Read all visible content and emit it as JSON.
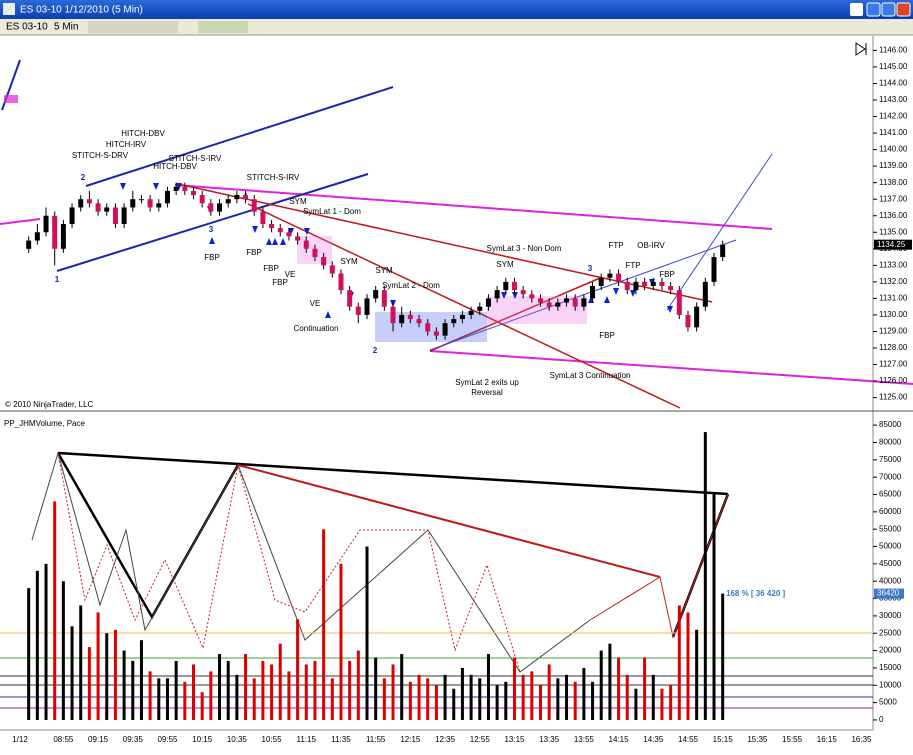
{
  "window": {
    "title": "ES 03-10  1/12/2010 (5 Min)",
    "instrument": "ES 03-10",
    "interval": "5 Min",
    "copyright": "© 2010 NinjaTrader, LLC"
  },
  "chart_data": [
    {
      "type": "ohlc",
      "open": [
        null,
        1134,
        1134.5,
        1135,
        1136,
        1134,
        1135.5,
        1136.5,
        1137,
        1136.75,
        1136.25,
        1136.5,
        1135.5,
        1136.5,
        1137,
        1137,
        1136.5,
        1136.75,
        1137.5,
        1137.75,
        1137.5,
        1137.25,
        1136.75,
        1136.25,
        1136.75,
        1137,
        1137.25,
        1137,
        1136.25,
        1135.5,
        1135.25,
        1135,
        1134.75,
        1134.5,
        1134,
        1133.5,
        1133,
        1132.5,
        1131.5,
        1130.5,
        1130,
        1131,
        1131.5,
        1130.5,
        1129.5,
        1130,
        1129.75,
        1129.5,
        1129,
        1128.75,
        1129.5,
        1129.75,
        1130,
        1130.25,
        1130.5,
        1131,
        1131.5,
        1132,
        1131.5,
        1131.25,
        1131,
        1130.75,
        1130.5,
        1130.75,
        1131,
        1130.5,
        1131,
        1131.75,
        1132.25,
        1132.5,
        1132,
        1131.5,
        1132,
        1131.75,
        1132,
        1131.75,
        1131.5,
        1130,
        1129.25,
        1130.5,
        1132,
        1133.5,
        null,
        null,
        null,
        null,
        null,
        null,
        null,
        null,
        null,
        null,
        null,
        null,
        null,
        null,
        null,
        null,
        null
      ],
      "high": [
        null,
        1134.75,
        1135.5,
        1136.5,
        1136.25,
        1135.75,
        1136.75,
        1137.25,
        1137.5,
        1137,
        1136.75,
        1136.75,
        1136.75,
        1137.5,
        1137.25,
        1137.25,
        1137,
        1137.75,
        1138,
        1138,
        1137.75,
        1137.5,
        1137,
        1137,
        1137.25,
        1137.5,
        1137.5,
        1137.25,
        1136.5,
        1135.75,
        1135.5,
        1135.25,
        1135,
        1134.75,
        1134.25,
        1133.75,
        1133.25,
        1132.75,
        1131.75,
        1130.75,
        1131.25,
        1131.75,
        1131.75,
        1130.75,
        1130.5,
        1130.25,
        1130,
        1129.75,
        1129.25,
        1129.75,
        1130,
        1130.25,
        1130.5,
        1130.75,
        1131.25,
        1131.75,
        1132.25,
        1132.25,
        1131.75,
        1131.5,
        1131.25,
        1131,
        1131,
        1131.25,
        1131.25,
        1131.25,
        1132,
        1132.5,
        1132.75,
        1132.75,
        1132.25,
        1132.25,
        1132.25,
        1132.25,
        1132.25,
        1132,
        1131.75,
        1130.25,
        1130.75,
        1132.25,
        1133.75,
        1134.5,
        null,
        null,
        null,
        null,
        null,
        null,
        null,
        null,
        null,
        null,
        null,
        null,
        null,
        null,
        null,
        null,
        null
      ],
      "low": [
        null,
        1133.75,
        1134.25,
        1134.75,
        1133,
        1133.75,
        1135.25,
        1136.25,
        1136.5,
        1136,
        1136,
        1135.25,
        1135.25,
        1136.25,
        1136.75,
        1136.25,
        1136.25,
        1136.5,
        1137.25,
        1137.25,
        1137,
        1136.5,
        1136,
        1136,
        1136.5,
        1136.75,
        1136.75,
        1136,
        1135.25,
        1135,
        1134.75,
        1134.5,
        1134.25,
        1133.75,
        1133.25,
        1132.75,
        1132.25,
        1131.25,
        1130.25,
        1129.5,
        1129.75,
        1130.75,
        1130.25,
        1129,
        1129.25,
        1129.5,
        1129.25,
        1128.75,
        1128.5,
        1128.5,
        1129.25,
        1129.5,
        1129.75,
        1130,
        1130.25,
        1130.75,
        1131.25,
        1131.25,
        1131,
        1130.75,
        1130.5,
        1130.25,
        1130.25,
        1130.5,
        1130.25,
        1130.25,
        1130.75,
        1131.5,
        1132,
        1131.75,
        1131.25,
        1131.25,
        1131.5,
        1131.5,
        1131.5,
        1131.25,
        1129.75,
        1129,
        1129,
        1130.25,
        1131.75,
        1133.25,
        null,
        null,
        null,
        null,
        null,
        null,
        null,
        null,
        null,
        null,
        null,
        null,
        null,
        null,
        null,
        null,
        null
      ],
      "close": [
        null,
        1134.5,
        1135,
        1136,
        1134,
        1135.5,
        1136.5,
        1137,
        1136.75,
        1136.25,
        1136.5,
        1135.5,
        1136.5,
        1137,
        1137,
        1136.5,
        1136.75,
        1137.5,
        1137.75,
        1137.5,
        1137.25,
        1136.75,
        1136.25,
        1136.75,
        1137,
        1137.25,
        1137,
        1136.25,
        1135.5,
        1135.25,
        1135,
        1134.75,
        1134.5,
        1134,
        1133.5,
        1133,
        1132.5,
        1131.5,
        1130.5,
        1130,
        1131,
        1131.5,
        1130.5,
        1129.5,
        1130,
        1129.75,
        1129.5,
        1129,
        1128.75,
        1129.5,
        1129.75,
        1130,
        1130.25,
        1130.5,
        1131,
        1131.5,
        1132,
        1131.5,
        1131.25,
        1131,
        1130.75,
        1130.5,
        1130.75,
        1131,
        1130.5,
        1131,
        1131.75,
        1132.25,
        1132.5,
        1132,
        1131.5,
        1132,
        1131.75,
        1132,
        1131.75,
        1131.5,
        1130,
        1129.25,
        1130.5,
        1132,
        1133.5,
        1134.25,
        null,
        null,
        null,
        null,
        null,
        null,
        null,
        null,
        null,
        null,
        null,
        null,
        null,
        null,
        null,
        null,
        null
      ],
      "up_color": "#000000",
      "down_color": "#d0105a",
      "ylim": [
        1124.25,
        1146.75
      ],
      "yticks": [
        {
          "value": 1125,
          "label": "1125.00"
        },
        {
          "value": 1126,
          "label": "1126.00"
        },
        {
          "value": 1127,
          "label": "1127.00"
        },
        {
          "value": 1128,
          "label": "1128.00"
        },
        {
          "value": 1129,
          "label": "1129.00"
        },
        {
          "value": 1130,
          "label": "1130.00"
        },
        {
          "value": 1131,
          "label": "1131.00"
        },
        {
          "value": 1132,
          "label": "1132.00"
        },
        {
          "value": 1133,
          "label": "1133.00"
        },
        {
          "value": 1134,
          "label": "1134.00"
        },
        {
          "value": 1135,
          "label": "1135.00"
        },
        {
          "value": 1136,
          "label": "1136.00"
        },
        {
          "value": 1137,
          "label": "1137.00"
        },
        {
          "value": 1138,
          "label": "1138.00"
        },
        {
          "value": 1139,
          "label": "1139.00"
        },
        {
          "value": 1140,
          "label": "1140.00"
        },
        {
          "value": 1141,
          "label": "1141.00"
        },
        {
          "value": 1142,
          "label": "1142.00"
        },
        {
          "value": 1143,
          "label": "1143.00"
        },
        {
          "value": 1144,
          "label": "1144.00"
        },
        {
          "value": 1145,
          "label": "1145.00"
        },
        {
          "value": 1146,
          "label": "1146.00"
        }
      ],
      "last_price": 1134.25,
      "annotations": [
        "STITCH-S-DRV",
        "HITCH-IRV",
        "HITCH-DBV",
        "STITCH-S-IRV",
        "HITCH-DBV",
        "STITCH-S-IRV",
        "SYM",
        "SymLat 1 - Dom",
        "FBP",
        "FBP",
        "FBP",
        "FBP",
        "VE",
        "VE",
        "Continuation",
        "SYM",
        "SYM",
        "SymLat 2 - Dom",
        "SymLat 3 - Non Dom",
        "SYM",
        "FTP",
        "FTP",
        "OB-IRV",
        "FBP",
        "FBP",
        "SymLat 2 exits up",
        "Reversal",
        "SymLat 3 Continuation",
        "1",
        "2",
        "3",
        "1",
        "2",
        "3"
      ]
    },
    {
      "type": "bar",
      "title": "PP_JHMVolume, Pace",
      "categories": [
        "1/12",
        null,
        null,
        null,
        null,
        "08:55",
        null,
        null,
        null,
        "09:15",
        null,
        null,
        null,
        "09:35",
        null,
        null,
        null,
        "09:55",
        null,
        null,
        null,
        "10:15",
        null,
        null,
        null,
        "10:35",
        null,
        null,
        null,
        "10:55",
        null,
        null,
        null,
        "11:15",
        null,
        null,
        null,
        "11:35",
        null,
        null,
        null,
        "11:55",
        null,
        null,
        null,
        "12:15",
        null,
        null,
        null,
        "12:35",
        null,
        null,
        null,
        "12:55",
        null,
        null,
        null,
        "13:15",
        null,
        null,
        null,
        "13:35",
        null,
        null,
        null,
        "13:55",
        null,
        null,
        null,
        "14:15",
        null,
        null,
        null,
        "14:35",
        null,
        null,
        null,
        "14:55",
        null,
        null,
        null,
        "15:15",
        null,
        null,
        null,
        "15:35",
        null,
        null,
        null,
        "15:55",
        null,
        null,
        null,
        "16:15",
        null,
        null,
        null,
        "16:35",
        null
      ],
      "values": [
        null,
        38000,
        43000,
        45000,
        63000,
        40000,
        27000,
        33000,
        21000,
        31000,
        25000,
        26000,
        20000,
        17000,
        23000,
        14000,
        12000,
        12000,
        17000,
        11000,
        16000,
        8000,
        14000,
        19000,
        17000,
        13000,
        19000,
        12000,
        17000,
        16000,
        22000,
        14000,
        29000,
        16000,
        17000,
        55000,
        12000,
        45000,
        17000,
        20000,
        50000,
        18000,
        12000,
        16000,
        19000,
        11000,
        13000,
        12000,
        10000,
        13000,
        9000,
        15000,
        13000,
        12000,
        19000,
        10000,
        11000,
        18000,
        13000,
        14000,
        10000,
        16000,
        12000,
        13000,
        11000,
        15000,
        11000,
        20000,
        22000,
        18000,
        13000,
        9000,
        18000,
        13000,
        9000,
        10000,
        33000,
        31000,
        26000,
        83000,
        65000,
        36420,
        null,
        null,
        null,
        null,
        null,
        null,
        null,
        null,
        null,
        null,
        null,
        null,
        null,
        null,
        null,
        null,
        null
      ],
      "up_color": "#000000",
      "down_color": "#dd0000",
      "ylim": [
        -2900,
        88500
      ],
      "yticks": [
        0,
        5000,
        10000,
        15000,
        20000,
        25000,
        30000,
        35000,
        40000,
        45000,
        50000,
        55000,
        60000,
        65000,
        70000,
        75000,
        80000,
        85000
      ],
      "pace_label": "168 % [ 36 420 ]",
      "last_value": 36420
    }
  ]
}
